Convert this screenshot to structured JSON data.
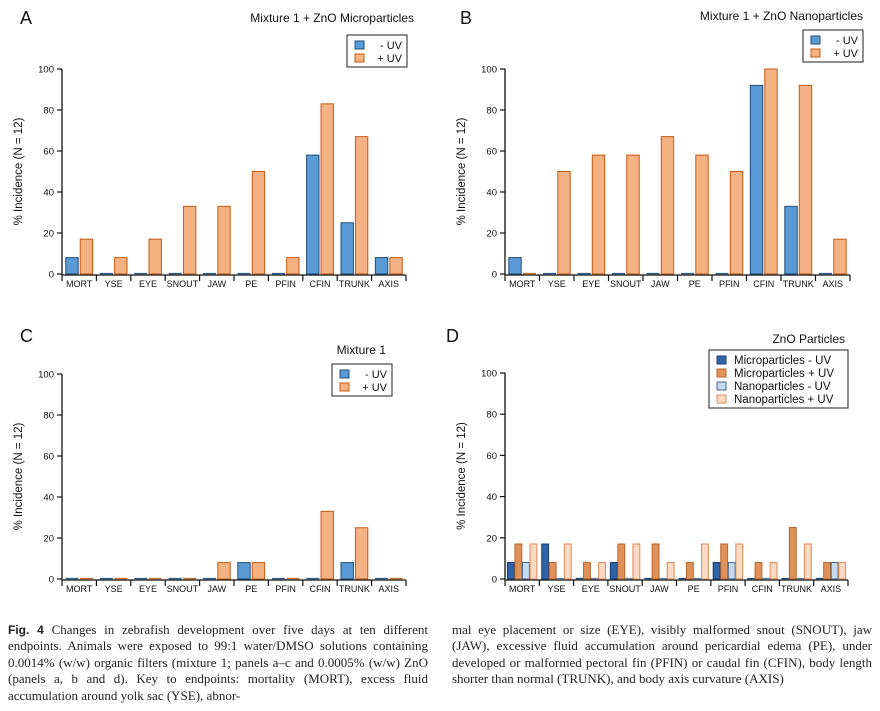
{
  "chart_data": [
    {
      "type": "bar",
      "panel": "A",
      "title": "Mixture 1 + ZnO Microparticles",
      "ylabel": "% Incidence (N = 12)",
      "ylim": [
        0,
        100
      ],
      "yticks": [
        0,
        20,
        40,
        60,
        80,
        100
      ],
      "categories": [
        "MORT",
        "YSE",
        "EYE",
        "SNOUT",
        "JAW",
        "PE",
        "PFIN",
        "CFIN",
        "TRUNK",
        "AXIS"
      ],
      "legend_position": "top-right",
      "series": [
        {
          "name": "- UV",
          "color": "#5b9bd5",
          "stroke": "#1f4e79",
          "values": [
            8,
            0,
            0,
            0,
            0,
            0,
            0,
            58,
            25,
            8
          ]
        },
        {
          "name": "+ UV",
          "color": "#f4b183",
          "stroke": "#c55a11",
          "values": [
            17,
            8,
            17,
            33,
            33,
            50,
            8,
            83,
            67,
            8
          ]
        }
      ]
    },
    {
      "type": "bar",
      "panel": "B",
      "title": "Mixture 1 + ZnO Nanoparticles",
      "ylabel": "% Incidence (N = 12)",
      "ylim": [
        0,
        100
      ],
      "yticks": [
        0,
        20,
        40,
        60,
        80,
        100
      ],
      "categories": [
        "MORT",
        "YSE",
        "EYE",
        "SNOUT",
        "JAW",
        "PE",
        "PFIN",
        "CFIN",
        "TRUNK",
        "AXIS"
      ],
      "legend_position": "top-right",
      "series": [
        {
          "name": "- UV",
          "color": "#5b9bd5",
          "stroke": "#1f4e79",
          "values": [
            8,
            0,
            0,
            0,
            0,
            0,
            0,
            92,
            33,
            0
          ]
        },
        {
          "name": "+ UV",
          "color": "#f4b183",
          "stroke": "#c55a11",
          "values": [
            0,
            50,
            58,
            58,
            67,
            58,
            50,
            100,
            92,
            17
          ]
        }
      ]
    },
    {
      "type": "bar",
      "panel": "C",
      "title": "Mixture 1",
      "ylabel": "% Incidence (N = 12)",
      "ylim": [
        0,
        100
      ],
      "yticks": [
        0,
        20,
        40,
        60,
        80,
        100
      ],
      "categories": [
        "MORT",
        "YSE",
        "EYE",
        "SNOUT",
        "JAW",
        "PE",
        "PFIN",
        "CFIN",
        "TRUNK",
        "AXIS"
      ],
      "legend_position": "top-right",
      "series": [
        {
          "name": "- UV",
          "color": "#5b9bd5",
          "stroke": "#1f4e79",
          "values": [
            0,
            0,
            0,
            0,
            0,
            8,
            0,
            0,
            8,
            0
          ]
        },
        {
          "name": "+ UV",
          "color": "#f4b183",
          "stroke": "#c55a11",
          "values": [
            0,
            0,
            0,
            0,
            8,
            8,
            0,
            33,
            25,
            0
          ]
        }
      ]
    },
    {
      "type": "bar",
      "panel": "D",
      "title": "ZnO Particles",
      "ylabel": "% Incidence (N = 12)",
      "ylim": [
        0,
        100
      ],
      "yticks": [
        0,
        20,
        40,
        60,
        80,
        100
      ],
      "categories": [
        "MORT",
        "YSE",
        "EYE",
        "SNOUT",
        "JAW",
        "PE",
        "PFIN",
        "CFIN",
        "TRUNK",
        "AXIS"
      ],
      "legend_position": "top-right",
      "series": [
        {
          "name": "Microparticles - UV",
          "color": "#2e64a8",
          "stroke": "#1a3d6e",
          "values": [
            8,
            17,
            0,
            8,
            0,
            0,
            8,
            0,
            0,
            0
          ]
        },
        {
          "name": "Microparticles + UV",
          "color": "#e0915a",
          "stroke": "#b8672e",
          "values": [
            17,
            8,
            8,
            17,
            17,
            8,
            17,
            8,
            25,
            8
          ]
        },
        {
          "name": "Nanoparticles - UV",
          "color": "#c5daf0",
          "stroke": "#4a6a8a",
          "values": [
            8,
            0,
            0,
            0,
            0,
            0,
            8,
            0,
            0,
            8
          ]
        },
        {
          "name": "Nanoparticles + UV",
          "color": "#fbd9c2",
          "stroke": "#d98b5a",
          "values": [
            17,
            17,
            8,
            17,
            8,
            17,
            17,
            8,
            17,
            8
          ]
        }
      ]
    }
  ],
  "caption": {
    "fig_label": "Fig. 4",
    "left": "Changes in zebrafish development over five days at ten different endpoints. Animals were exposed to 99:1 water/DMSO solutions containing 0.0014% (w/w) organic filters (mixture 1; panels a–c and 0.0005% (w/w) ZnO (panels a, b and d). Key to endpoints: mortality (MORT), excess fluid accumulation around yolk sac (YSE), abnor-",
    "right": "mal eye placement or size (EYE), visibly malformed snout (SNOUT), jaw (JAW), excessive fluid accumulation around pericardial edema (PE), under developed or malformed pectoral fin (PFIN) or caudal fin (CFIN), body length shorter than normal (TRUNK), and body axis curvature (AXIS)"
  }
}
